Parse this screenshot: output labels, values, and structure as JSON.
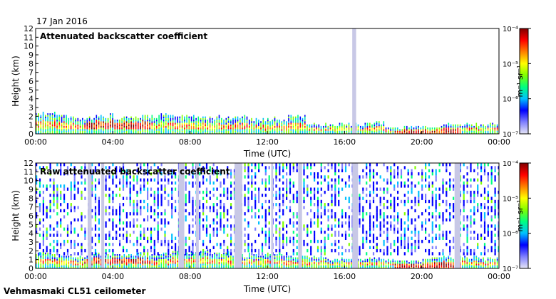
{
  "date_label": "17 Jan 2016",
  "footer": "Vehmasmaki CL51 ceilometer",
  "colors": {
    "background": "#ffffff",
    "no_data": "#c8c8e6",
    "noise_blue": "#2020ff",
    "colormap": [
      "#e6e6f5",
      "#8080ff",
      "#0000ff",
      "#00c0ff",
      "#00ff80",
      "#80ff00",
      "#ffff00",
      "#ff8000",
      "#ff0000",
      "#800000"
    ]
  },
  "chart_data": [
    {
      "type": "heatmap",
      "title": "Attenuated backscatter coefficient",
      "xlabel": "Time (UTC)",
      "ylabel": "Height (km)",
      "xlim": [
        0,
        24
      ],
      "ylim": [
        0,
        12
      ],
      "x_ticks": [
        0,
        4,
        8,
        12,
        16,
        20,
        24
      ],
      "x_tick_labels": [
        "00:00",
        "04:00",
        "08:00",
        "12:00",
        "16:00",
        "20:00",
        "00:00"
      ],
      "y_ticks": [
        0,
        1,
        2,
        3,
        4,
        5,
        6,
        7,
        8,
        9,
        10,
        11,
        12
      ],
      "y_tick_labels": [
        "0",
        "1",
        "2",
        "3",
        "4",
        "5",
        "6",
        "7",
        "8",
        "9",
        "10",
        "11",
        "12"
      ],
      "colorbar": {
        "unit": "m⁻¹ sr⁻¹",
        "range_exponents": [
          -7,
          -4
        ],
        "tick_labels": [
          "10⁻⁴",
          "10⁻⁵",
          "10⁻⁶",
          "10⁻⁷"
        ]
      },
      "aerosol_layer_top_km": [
        2.2,
        2.0,
        1.6,
        1.9,
        1.8,
        1.9,
        2.0,
        1.8,
        1.8,
        1.8,
        1.8,
        1.5,
        1.6,
        1.8,
        1.0,
        1.0,
        1.0,
        1.2,
        0.6,
        0.7,
        0.7,
        1.0,
        1.0,
        1.0
      ],
      "no_data_gaps_h": [
        [
          16.4,
          16.6
        ]
      ]
    },
    {
      "type": "heatmap",
      "title": "Raw attenuated backscatter coefficient",
      "xlabel": "Time (UTC)",
      "ylabel": "Height (km)",
      "xlim": [
        0,
        24
      ],
      "ylim": [
        0,
        12
      ],
      "x_ticks": [
        0,
        4,
        8,
        12,
        16,
        20,
        24
      ],
      "x_tick_labels": [
        "00:00",
        "04:00",
        "08:00",
        "12:00",
        "16:00",
        "20:00",
        "00:00"
      ],
      "y_ticks": [
        0,
        1,
        2,
        3,
        4,
        5,
        6,
        7,
        8,
        9,
        10,
        11,
        12
      ],
      "y_tick_labels": [
        "0",
        "1",
        "2",
        "3",
        "4",
        "5",
        "6",
        "7",
        "8",
        "9",
        "10",
        "11",
        "12"
      ],
      "colorbar": {
        "unit": "m⁻¹ sr⁻¹",
        "range_exponents": [
          -7,
          -4
        ],
        "tick_labels": [
          "10⁻⁴",
          "10⁻⁵",
          "10⁻⁶",
          "10⁻⁷"
        ]
      },
      "aerosol_layer_top_km": [
        1.6,
        1.4,
        1.3,
        1.5,
        1.4,
        1.5,
        1.6,
        1.7,
        1.8,
        1.6,
        1.4,
        1.5,
        1.4,
        1.3,
        1.2,
        1.0,
        1.0,
        1.1,
        0.9,
        0.8,
        1.1,
        1.2,
        1.2,
        1.0
      ],
      "no_data_gaps_h": [
        [
          2.7,
          2.9
        ],
        [
          3.4,
          3.55
        ],
        [
          7.4,
          7.7
        ],
        [
          8.3,
          8.45
        ],
        [
          10.3,
          10.7
        ],
        [
          12.2,
          12.3
        ],
        [
          13.6,
          13.8
        ],
        [
          16.4,
          16.7
        ],
        [
          21.7,
          22.0
        ]
      ]
    }
  ]
}
